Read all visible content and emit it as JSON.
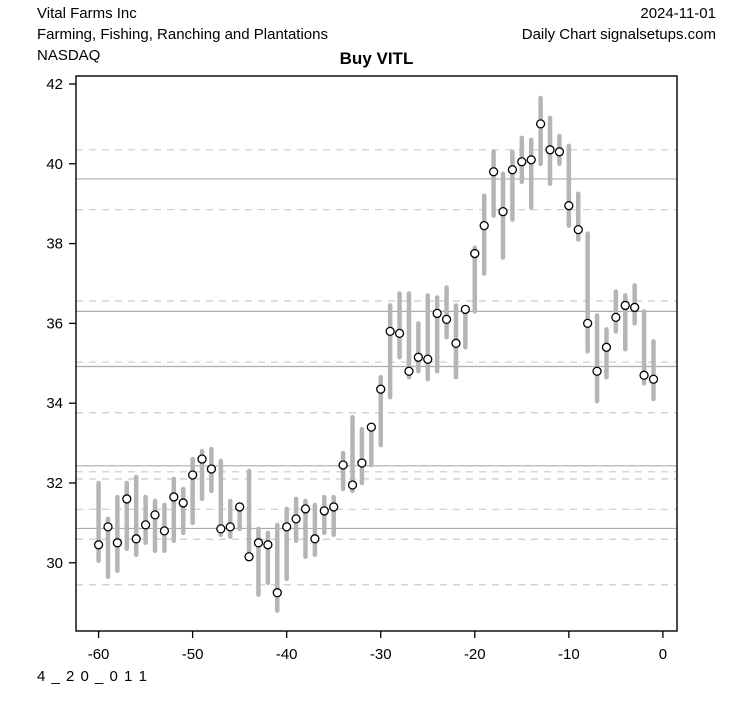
{
  "header": {
    "company": "Vital Farms Inc",
    "date": "2024-11-01",
    "industry": "Farming, Fishing, Ranching and Plantations",
    "chart_type": "Daily Chart signalsetups.com",
    "exchange": "NASDAQ"
  },
  "footer": {
    "code": "4 _ 2 0 _ 0 1 1"
  },
  "chart_data": {
    "type": "bar",
    "subtype": "high-low-close-daily-bars",
    "title": "Buy VITL",
    "xlabel": "",
    "ylabel": "",
    "x_axis": {
      "ticks": [
        -60,
        -50,
        -40,
        -30,
        -20,
        -10,
        0
      ],
      "range": [
        -62.4,
        1.5
      ]
    },
    "y_axis": {
      "ticks": [
        30,
        32,
        34,
        36,
        38,
        40,
        42
      ],
      "range": [
        28.29,
        42.2
      ]
    },
    "legend": "none",
    "grid": "horizontal-support-resistance-levels",
    "colors": {
      "bar": "#b5b5b5",
      "close_marker_fill": "#ffffff",
      "close_marker_stroke": "#000000",
      "level_solid": "#ababab",
      "level_dashed": "#cbcbcb",
      "axis": "#000000"
    },
    "levels_solid": [
      39.62,
      36.3,
      34.92,
      32.43,
      30.86
    ],
    "levels_dashed": [
      40.35,
      38.85,
      36.56,
      35.03,
      33.76,
      32.28,
      32.1,
      31.34,
      30.59,
      29.45
    ],
    "series": [
      {
        "name": "VITL",
        "columns": [
          "day",
          "high",
          "low",
          "close"
        ],
        "points": [
          [
            -60,
            32.0,
            30.05,
            30.45
          ],
          [
            -59,
            31.1,
            29.65,
            30.9
          ],
          [
            -58,
            31.65,
            29.8,
            30.5
          ],
          [
            -57,
            32.0,
            30.35,
            31.6
          ],
          [
            -56,
            32.15,
            30.2,
            30.6
          ],
          [
            -55,
            31.65,
            30.5,
            30.95
          ],
          [
            -54,
            31.55,
            30.3,
            31.2
          ],
          [
            -53,
            31.45,
            30.3,
            30.8
          ],
          [
            -52,
            32.1,
            30.55,
            31.65
          ],
          [
            -51,
            31.85,
            30.75,
            31.5
          ],
          [
            -50,
            32.6,
            31.0,
            32.2
          ],
          [
            -49,
            32.8,
            31.6,
            32.6
          ],
          [
            -48,
            32.85,
            31.8,
            32.35
          ],
          [
            -47,
            32.55,
            30.7,
            30.85
          ],
          [
            -46,
            31.55,
            30.65,
            30.9
          ],
          [
            -45,
            31.45,
            30.85,
            31.4
          ],
          [
            -44,
            32.3,
            30.15,
            30.15
          ],
          [
            -43,
            30.85,
            29.2,
            30.5
          ],
          [
            -42,
            30.75,
            29.5,
            30.45
          ],
          [
            -41,
            30.95,
            28.8,
            29.25
          ],
          [
            -40,
            31.35,
            29.6,
            30.9
          ],
          [
            -39,
            31.6,
            30.55,
            31.1
          ],
          [
            -38,
            31.55,
            30.15,
            31.35
          ],
          [
            -37,
            31.45,
            30.2,
            30.6
          ],
          [
            -36,
            31.65,
            30.75,
            31.3
          ],
          [
            -35,
            31.65,
            30.7,
            31.4
          ],
          [
            -34,
            32.75,
            31.85,
            32.45
          ],
          [
            -33,
            33.65,
            31.8,
            31.95
          ],
          [
            -32,
            33.35,
            32.0,
            32.5
          ],
          [
            -31,
            33.45,
            32.45,
            33.4
          ],
          [
            -30,
            34.65,
            32.95,
            34.35
          ],
          [
            -29,
            36.45,
            34.15,
            35.8
          ],
          [
            -28,
            36.75,
            35.15,
            35.75
          ],
          [
            -27,
            36.75,
            34.65,
            34.8
          ],
          [
            -26,
            36.0,
            34.8,
            35.15
          ],
          [
            -25,
            36.7,
            34.6,
            35.1
          ],
          [
            -24,
            36.65,
            34.8,
            36.25
          ],
          [
            -23,
            36.9,
            35.65,
            36.1
          ],
          [
            -22,
            36.45,
            34.65,
            35.5
          ],
          [
            -21,
            36.4,
            35.4,
            36.35
          ],
          [
            -20,
            37.9,
            36.3,
            37.75
          ],
          [
            -19,
            39.2,
            37.25,
            38.45
          ],
          [
            -18,
            40.3,
            38.7,
            39.8
          ],
          [
            -17,
            39.75,
            37.65,
            38.8
          ],
          [
            -16,
            40.3,
            38.6,
            39.85
          ],
          [
            -15,
            40.65,
            39.55,
            40.05
          ],
          [
            -14,
            40.6,
            38.9,
            40.1
          ],
          [
            -13,
            41.65,
            40.0,
            41.0
          ],
          [
            -12,
            41.15,
            39.5,
            40.35
          ],
          [
            -11,
            40.7,
            40.0,
            40.3
          ],
          [
            -10,
            40.45,
            38.45,
            38.95
          ],
          [
            -9,
            39.25,
            38.1,
            38.35
          ],
          [
            -8,
            38.25,
            35.3,
            36.0
          ],
          [
            -7,
            36.2,
            34.05,
            34.8
          ],
          [
            -6,
            35.85,
            34.65,
            35.4
          ],
          [
            -5,
            36.8,
            35.8,
            36.15
          ],
          [
            -4,
            36.7,
            35.35,
            36.45
          ],
          [
            -3,
            36.95,
            36.0,
            36.4
          ],
          [
            -2,
            36.3,
            34.5,
            34.7
          ],
          [
            -1,
            35.55,
            34.1,
            34.6
          ]
        ]
      }
    ]
  }
}
